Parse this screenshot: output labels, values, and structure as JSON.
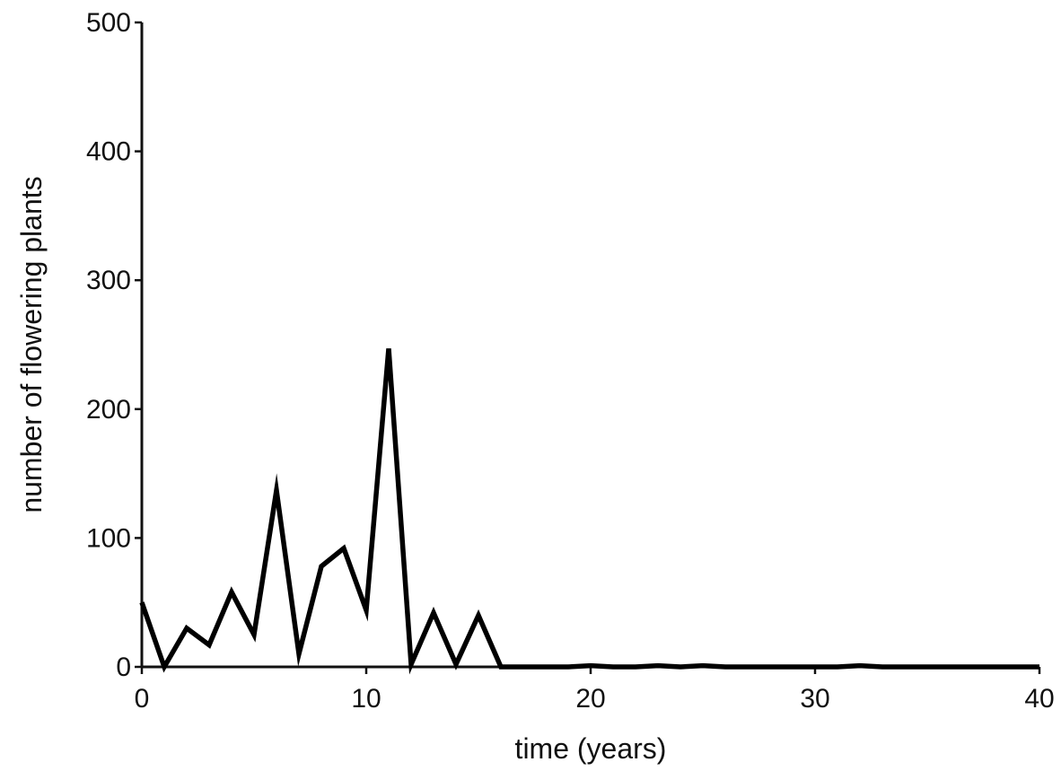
{
  "chart_data": {
    "type": "line",
    "title": "",
    "xlabel": "time (years)",
    "ylabel": "number of flowering plants",
    "xlim": [
      0,
      40
    ],
    "ylim": [
      0,
      500
    ],
    "xticks": [
      0,
      10,
      20,
      30,
      40
    ],
    "yticks": [
      0,
      100,
      200,
      300,
      400,
      500
    ],
    "grid": false,
    "legend": "none",
    "line_color": "#000000",
    "series": [
      {
        "x": [
          0,
          1,
          2,
          3,
          4,
          5,
          6,
          7,
          8,
          9,
          10,
          11,
          12,
          13,
          14,
          15,
          16,
          17,
          18,
          19,
          20,
          21,
          22,
          23,
          24,
          25,
          26,
          27,
          28,
          29,
          30,
          31,
          32,
          33,
          34,
          35,
          36,
          37,
          38,
          39,
          40
        ],
        "values": [
          50,
          0,
          30,
          17,
          58,
          25,
          137,
          10,
          78,
          92,
          44,
          247,
          2,
          42,
          2,
          40,
          0,
          0,
          0,
          0,
          1,
          0,
          0,
          1,
          0,
          1,
          0,
          0,
          0,
          0,
          0,
          0,
          1,
          0,
          0,
          0,
          0,
          0,
          0,
          0,
          0
        ]
      }
    ]
  }
}
